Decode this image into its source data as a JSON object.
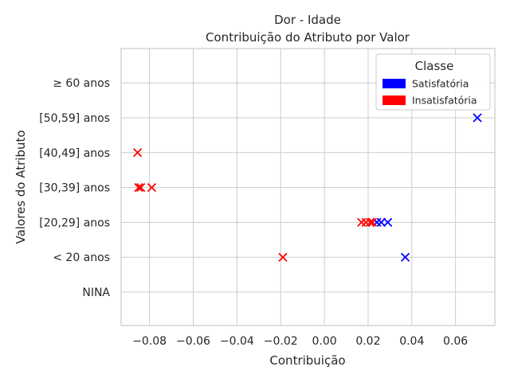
{
  "chart_data": {
    "type": "scatter",
    "title": "Dor - Idade",
    "subtitle": "Contribuição do Atributo por Valor",
    "xlabel": "Contribuição",
    "ylabel": "Valores do Atributo",
    "xlim": [
      -0.093,
      0.078
    ],
    "x_ticks": [
      -0.08,
      -0.06,
      -0.04,
      -0.02,
      0.0,
      0.02,
      0.04,
      0.06
    ],
    "x_tick_labels": [
      "−0.08",
      "−0.06",
      "−0.04",
      "−0.02",
      "0.00",
      "0.02",
      "0.04",
      "0.06"
    ],
    "categories": [
      "NINA",
      "< 20 anos",
      "[20,29] anos",
      "[30,39] anos",
      "[40,49] anos",
      "[50,59] anos",
      "≥ 60 anos"
    ],
    "grid": true,
    "marker": "x",
    "legend": {
      "title": "Classe",
      "placement": "top-right",
      "entries": [
        {
          "label": "Satisfatória",
          "color": "#0000ff"
        },
        {
          "label": "Insatisfatória",
          "color": "#ff0000"
        }
      ]
    },
    "series": [
      {
        "name": "Satisfatória",
        "color": "#0000ff",
        "points": [
          {
            "x": 0.07,
            "y": "[50,59] anos"
          },
          {
            "x": 0.037,
            "y": "< 20 anos"
          },
          {
            "x": 0.024,
            "y": "[20,29] anos"
          },
          {
            "x": 0.026,
            "y": "[20,29] anos"
          },
          {
            "x": 0.029,
            "y": "[20,29] anos"
          }
        ]
      },
      {
        "name": "Insatisfatória",
        "color": "#ff0000",
        "points": [
          {
            "x": -0.0855,
            "y": "[40,49] anos"
          },
          {
            "x": -0.085,
            "y": "[30,39] anos"
          },
          {
            "x": -0.084,
            "y": "[30,39] anos"
          },
          {
            "x": -0.079,
            "y": "[30,39] anos"
          },
          {
            "x": -0.019,
            "y": "< 20 anos"
          },
          {
            "x": 0.017,
            "y": "[20,29] anos"
          },
          {
            "x": 0.019,
            "y": "[20,29] anos"
          },
          {
            "x": 0.021,
            "y": "[20,29] anos"
          },
          {
            "x": 0.022,
            "y": "[20,29] anos"
          }
        ]
      }
    ]
  }
}
